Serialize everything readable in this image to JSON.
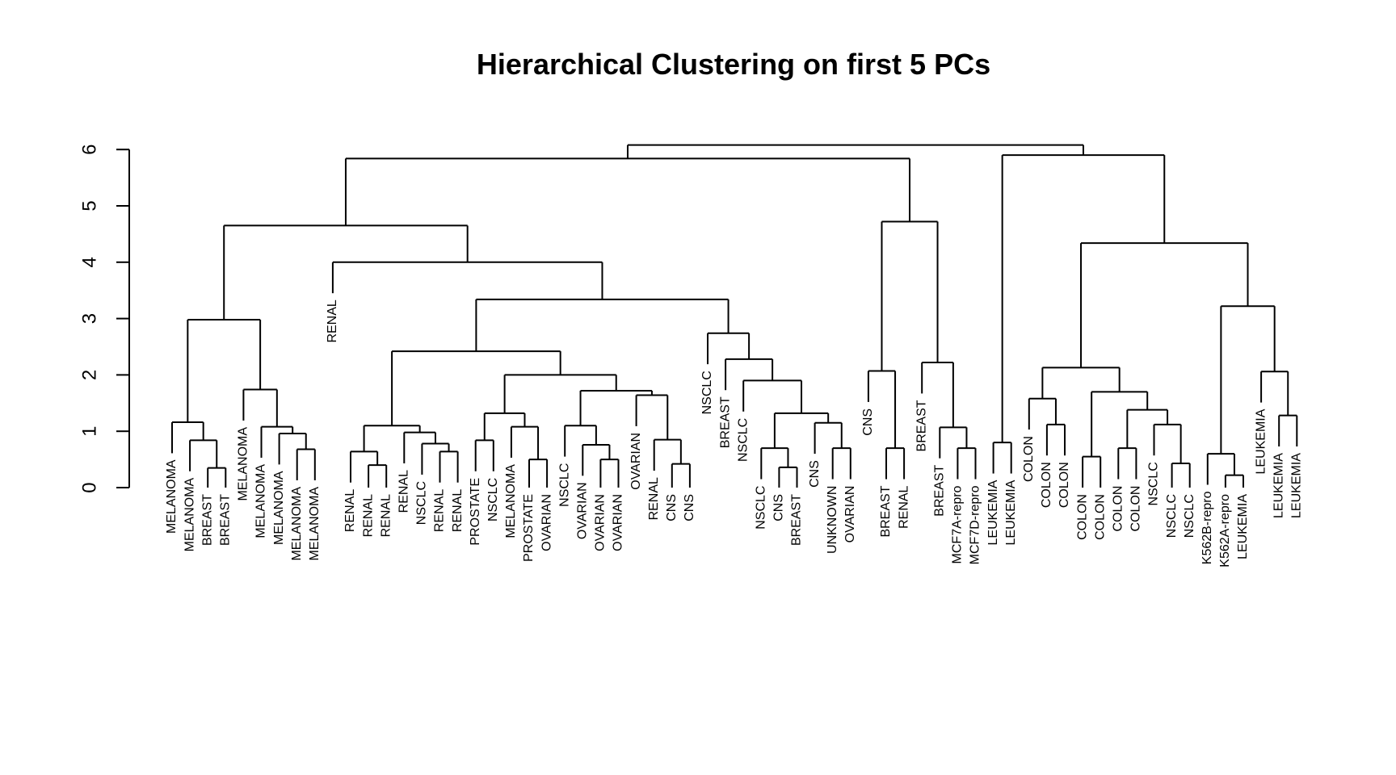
{
  "chart_data": {
    "type": "dendrogram",
    "title": "Hierarchical Clustering on first 5 PCs",
    "xlabel": "",
    "ylabel": "",
    "ylim": [
      0,
      6.2
    ],
    "yticks": [
      0,
      1,
      2,
      3,
      4,
      5,
      6
    ],
    "grid": false,
    "legend": "none",
    "line_color": "#000000",
    "leaves": [
      {
        "label": "MELANOMA",
        "height": 0.55
      },
      {
        "label": "MELANOMA",
        "height": 0.55
      },
      {
        "label": "BREAST",
        "height": 0.3
      },
      {
        "label": "BREAST",
        "height": 0.3
      },
      {
        "label": "MELANOMA",
        "height": 1.1
      },
      {
        "label": "MELANOMA",
        "height": 0.55
      },
      {
        "label": "MELANOMA",
        "height": 0.55
      },
      {
        "label": "MELANOMA",
        "height": 0.55
      },
      {
        "label": "MELANOMA",
        "height": 0.55
      },
      {
        "label": "RENAL",
        "height": 3.4
      },
      {
        "label": "RENAL",
        "height": 0.55
      },
      {
        "label": "RENAL",
        "height": 0.3
      },
      {
        "label": "RENAL",
        "height": 0.3
      },
      {
        "label": "RENAL",
        "height": 0.35
      },
      {
        "label": "NSCLC",
        "height": 0.55
      },
      {
        "label": "RENAL",
        "height": 0.55
      },
      {
        "label": "RENAL",
        "height": 0.55
      },
      {
        "label": "PROSTATE",
        "height": 0.35
      },
      {
        "label": "NSCLC",
        "height": 0.35
      },
      {
        "label": "MELANOMA",
        "height": 0.55
      },
      {
        "label": "PROSTATE",
        "height": 0.35
      },
      {
        "label": "OVARIAN",
        "height": 0.35
      },
      {
        "label": "NSCLC",
        "height": 0.35
      },
      {
        "label": "OVARIAN",
        "height": 0.35
      },
      {
        "label": "OVARIAN",
        "height": 0.35
      },
      {
        "label": "OVARIAN",
        "height": 0.35
      },
      {
        "label": "OVARIAN",
        "height": 1.5
      },
      {
        "label": "RENAL",
        "height": 0.35
      },
      {
        "label": "CNS",
        "height": 0.35
      },
      {
        "label": "CNS",
        "height": 0.35
      },
      {
        "label": "NSCLC",
        "height": 1.9
      },
      {
        "label": "BREAST",
        "height": 1.3
      },
      {
        "label": "NSCLC",
        "height": 1.05
      },
      {
        "label": "NSCLC",
        "height": 0.55
      },
      {
        "label": "CNS",
        "height": 0.35
      },
      {
        "label": "BREAST",
        "height": 0.35
      },
      {
        "label": "CNS",
        "height": 0.75
      },
      {
        "label": "UNKNOWN",
        "height": 0.55
      },
      {
        "label": "OVARIAN",
        "height": 0.55
      },
      {
        "label": "CNS",
        "height": 1.4
      },
      {
        "label": "BREAST",
        "height": 0.55
      },
      {
        "label": "RENAL",
        "height": 0.55
      },
      {
        "label": "BREAST",
        "height": 1.6
      },
      {
        "label": "BREAST",
        "height": 0.5
      },
      {
        "label": "MCF7A-repro",
        "height": 0.3
      },
      {
        "label": "MCF7D-repro",
        "height": 0.3
      },
      {
        "label": "LEUKEMIA",
        "height": 0.3
      },
      {
        "label": "LEUKEMIA",
        "height": 0.3
      },
      {
        "label": "COLON",
        "height": 0.85
      },
      {
        "label": "COLON",
        "height": 0.5
      },
      {
        "label": "COLON",
        "height": 0.5
      },
      {
        "label": "COLON",
        "height": 0.3
      },
      {
        "label": "COLON",
        "height": 0.3
      },
      {
        "label": "COLON",
        "height": 0.3
      },
      {
        "label": "COLON",
        "height": 0.3
      },
      {
        "label": "NSCLC",
        "height": 0.7
      },
      {
        "label": "NSCLC",
        "height": 0.3
      },
      {
        "label": "NSCLC",
        "height": 0.3
      },
      {
        "label": "K562B-repro",
        "height": 0.3
      },
      {
        "label": "K562A-repro",
        "height": 0.3
      },
      {
        "label": "LEUKEMIA",
        "height": 0.3
      },
      {
        "label": "LEUKEMIA",
        "height": 1.1
      },
      {
        "label": "LEUKEMIA",
        "height": 0.55
      },
      {
        "label": "LEUKEMIA",
        "height": 0.55
      }
    ],
    "merges": [
      {
        "left": 2,
        "right": 3,
        "height": 0.35
      },
      {
        "left": 1,
        "right": "m0",
        "height": 0.84
      },
      {
        "left": 0,
        "right": "m1",
        "height": 1.16
      },
      {
        "left": 7,
        "right": 8,
        "height": 0.68
      },
      {
        "left": 6,
        "right": "m3",
        "height": 0.96
      },
      {
        "left": 5,
        "right": "m4",
        "height": 1.08
      },
      {
        "left": 4,
        "right": "m5",
        "height": 1.74
      },
      {
        "left": "m2",
        "right": "m6",
        "height": 2.98
      },
      {
        "left": 11,
        "right": 12,
        "height": 0.4
      },
      {
        "left": 10,
        "right": "m8",
        "height": 0.64
      },
      {
        "left": 15,
        "right": 16,
        "height": 0.64
      },
      {
        "left": 14,
        "right": "m10",
        "height": 0.78
      },
      {
        "left": 13,
        "right": "m11",
        "height": 0.98
      },
      {
        "left": "m9",
        "right": "m12",
        "height": 1.1
      },
      {
        "left": 17,
        "right": 18,
        "height": 0.84
      },
      {
        "left": 20,
        "right": 21,
        "height": 0.5
      },
      {
        "left": 19,
        "right": "m15",
        "height": 1.08
      },
      {
        "left": "m14",
        "right": "m16",
        "height": 1.32
      },
      {
        "left": 24,
        "right": 25,
        "height": 0.5
      },
      {
        "left": 23,
        "right": "m18",
        "height": 0.76
      },
      {
        "left": 22,
        "right": "m19",
        "height": 1.1
      },
      {
        "left": 28,
        "right": 29,
        "height": 0.42
      },
      {
        "left": 27,
        "right": "m21",
        "height": 0.85
      },
      {
        "left": 26,
        "right": "m22",
        "height": 1.64
      },
      {
        "left": "m20",
        "right": "m23",
        "height": 1.72
      },
      {
        "left": "m17",
        "right": "m24",
        "height": 2.0
      },
      {
        "left": "m13",
        "right": "m25",
        "height": 2.42
      },
      {
        "left": 34,
        "right": 35,
        "height": 0.36
      },
      {
        "left": 33,
        "right": "m27",
        "height": 0.7
      },
      {
        "left": 37,
        "right": 38,
        "height": 0.7
      },
      {
        "left": 36,
        "right": "m29",
        "height": 1.15
      },
      {
        "left": "m28",
        "right": "m30",
        "height": 1.32
      },
      {
        "left": 32,
        "right": "m31",
        "height": 1.9
      },
      {
        "left": 31,
        "right": "m32",
        "height": 2.28
      },
      {
        "left": 30,
        "right": "m33",
        "height": 2.74
      },
      {
        "left": "m26",
        "right": "m34",
        "height": 3.34
      },
      {
        "left": 9,
        "right": "m35",
        "height": 4.0
      },
      {
        "left": "m7",
        "right": "m36",
        "height": 4.65
      },
      {
        "left": 40,
        "right": 41,
        "height": 0.7
      },
      {
        "left": 39,
        "right": "m38",
        "height": 2.07
      },
      {
        "left": 44,
        "right": 45,
        "height": 0.7
      },
      {
        "left": 43,
        "right": "m40",
        "height": 1.07
      },
      {
        "left": 42,
        "right": "m41",
        "height": 2.22
      },
      {
        "left": "m39",
        "right": "m42",
        "height": 4.72
      },
      {
        "left": "m37",
        "right": "m43",
        "height": 5.84
      },
      {
        "left": 46,
        "right": 47,
        "height": 0.8
      },
      {
        "left": 49,
        "right": 50,
        "height": 1.12
      },
      {
        "left": 48,
        "right": "m46",
        "height": 1.58
      },
      {
        "left": 51,
        "right": 52,
        "height": 0.55
      },
      {
        "left": 53,
        "right": 54,
        "height": 0.7
      },
      {
        "left": 56,
        "right": 57,
        "height": 0.43
      },
      {
        "left": 55,
        "right": "m50",
        "height": 1.12
      },
      {
        "left": "m49",
        "right": "m51",
        "height": 1.38
      },
      {
        "left": "m48",
        "right": "m52",
        "height": 1.7
      },
      {
        "left": "m47",
        "right": "m53",
        "height": 2.13
      },
      {
        "left": 59,
        "right": 60,
        "height": 0.22
      },
      {
        "left": 58,
        "right": "m55",
        "height": 0.6
      },
      {
        "left": 62,
        "right": 63,
        "height": 1.28
      },
      {
        "left": 61,
        "right": "m57",
        "height": 2.06
      },
      {
        "left": "m56",
        "right": "m58",
        "height": 3.22
      },
      {
        "left": "m54",
        "right": "m59",
        "height": 4.34
      },
      {
        "left": "m45",
        "right": "m60",
        "height": 5.9
      },
      {
        "left": "m44",
        "right": "m61",
        "height": 6.08
      }
    ]
  }
}
